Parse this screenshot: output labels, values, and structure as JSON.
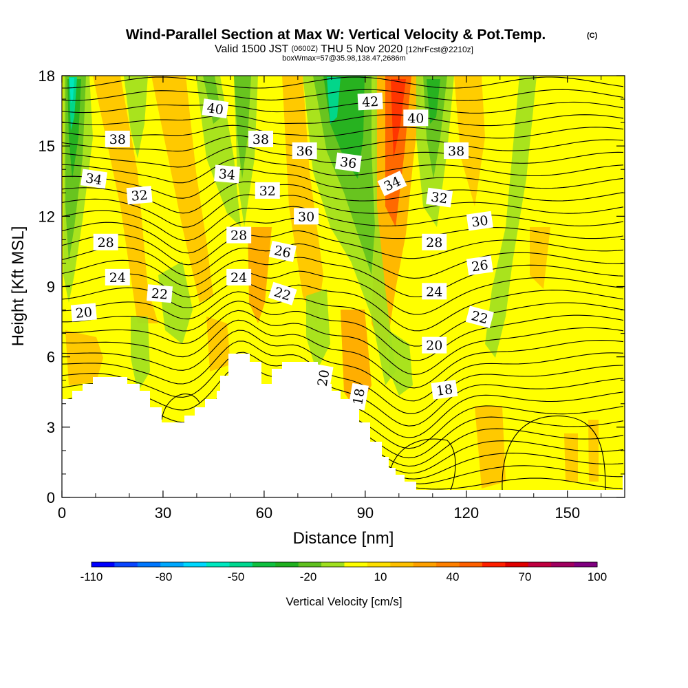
{
  "chart_data": {
    "type": "heatmap",
    "title": "Wind-Parallel Section at Max W: Vertical Velocity & Pot.Temp.",
    "title_mark": "(C)",
    "subtitle_main": "Valid 1500 JST",
    "subtitle_utc": "(0600Z)",
    "subtitle_date": "THU 5 Nov 2020",
    "subtitle_fcst": "[12hrFcst@2210z]",
    "subtitle2": "boxWmax=57@35.98,138.47,2686m",
    "xlabel": "Distance [nm]",
    "ylabel": "Height [Kft MSL]",
    "xlim": [
      0,
      167
    ],
    "ylim": [
      0,
      18
    ],
    "xticks": [
      0,
      30,
      60,
      90,
      120,
      150
    ],
    "yticks": [
      0,
      3,
      6,
      9,
      12,
      15,
      18
    ],
    "grid": false,
    "colorbar": {
      "label": "Vertical Velocity [cm/s]",
      "tick_labels": [
        "-110",
        "-80",
        "-50",
        "-20",
        "10",
        "40",
        "70",
        "100"
      ],
      "colors": [
        "#0000ff",
        "#0a46ff",
        "#0078ff",
        "#00a8ff",
        "#00d8ff",
        "#00e8c0",
        "#00d890",
        "#10c040",
        "#20b020",
        "#60c020",
        "#a0e020",
        "#ffff00",
        "#ffe000",
        "#ffc000",
        "#ffa000",
        "#ff8000",
        "#ff6000",
        "#ff2000",
        "#e00000",
        "#c00040",
        "#a00060",
        "#800080"
      ]
    },
    "theta_contour_labels": [
      {
        "text": "40",
        "x": 45.5,
        "y": 16.6,
        "rot": 8
      },
      {
        "text": "42",
        "x": 91.5,
        "y": 16.9,
        "rot": -3
      },
      {
        "text": "40",
        "x": 105,
        "y": 16.2,
        "rot": 0
      },
      {
        "text": "38",
        "x": 16.5,
        "y": 15.3,
        "rot": 0
      },
      {
        "text": "38",
        "x": 59,
        "y": 15.3,
        "rot": 0
      },
      {
        "text": "38",
        "x": 117,
        "y": 14.8,
        "rot": 0
      },
      {
        "text": "36",
        "x": 72,
        "y": 14.8,
        "rot": 0
      },
      {
        "text": "36",
        "x": 85,
        "y": 14.3,
        "rot": 8
      },
      {
        "text": "34",
        "x": 9.5,
        "y": 13.6,
        "rot": 8
      },
      {
        "text": "34",
        "x": 49,
        "y": 13.8,
        "rot": 5
      },
      {
        "text": "34",
        "x": 98,
        "y": 13.4,
        "rot": -25
      },
      {
        "text": "32",
        "x": 23,
        "y": 12.9,
        "rot": -5
      },
      {
        "text": "32",
        "x": 61,
        "y": 13.1,
        "rot": 0
      },
      {
        "text": "32",
        "x": 112,
        "y": 12.8,
        "rot": 8
      },
      {
        "text": "30",
        "x": 72.5,
        "y": 12.0,
        "rot": 0
      },
      {
        "text": "30",
        "x": 124,
        "y": 11.8,
        "rot": -8
      },
      {
        "text": "28",
        "x": 13,
        "y": 10.9,
        "rot": 0
      },
      {
        "text": "28",
        "x": 52.5,
        "y": 11.2,
        "rot": 0
      },
      {
        "text": "28",
        "x": 110.5,
        "y": 10.9,
        "rot": 0
      },
      {
        "text": "26",
        "x": 65.5,
        "y": 10.5,
        "rot": 12
      },
      {
        "text": "26",
        "x": 124,
        "y": 9.9,
        "rot": -8
      },
      {
        "text": "24",
        "x": 16.5,
        "y": 9.4,
        "rot": 0
      },
      {
        "text": "24",
        "x": 52.5,
        "y": 9.4,
        "rot": 0
      },
      {
        "text": "24",
        "x": 110.5,
        "y": 8.8,
        "rot": 0
      },
      {
        "text": "22",
        "x": 29,
        "y": 8.7,
        "rot": 5
      },
      {
        "text": "22",
        "x": 65.5,
        "y": 8.7,
        "rot": 18
      },
      {
        "text": "22",
        "x": 124,
        "y": 7.7,
        "rot": 15
      },
      {
        "text": "20",
        "x": 6.5,
        "y": 7.9,
        "rot": -5
      },
      {
        "text": "20",
        "x": 110.5,
        "y": 6.5,
        "rot": 0
      },
      {
        "text": "20",
        "x": 77.5,
        "y": 5.1,
        "rot": -80
      },
      {
        "text": "18",
        "x": 88,
        "y": 4.3,
        "rot": -80
      },
      {
        "text": "18",
        "x": 113.5,
        "y": 4.6,
        "rot": -8
      }
    ]
  }
}
